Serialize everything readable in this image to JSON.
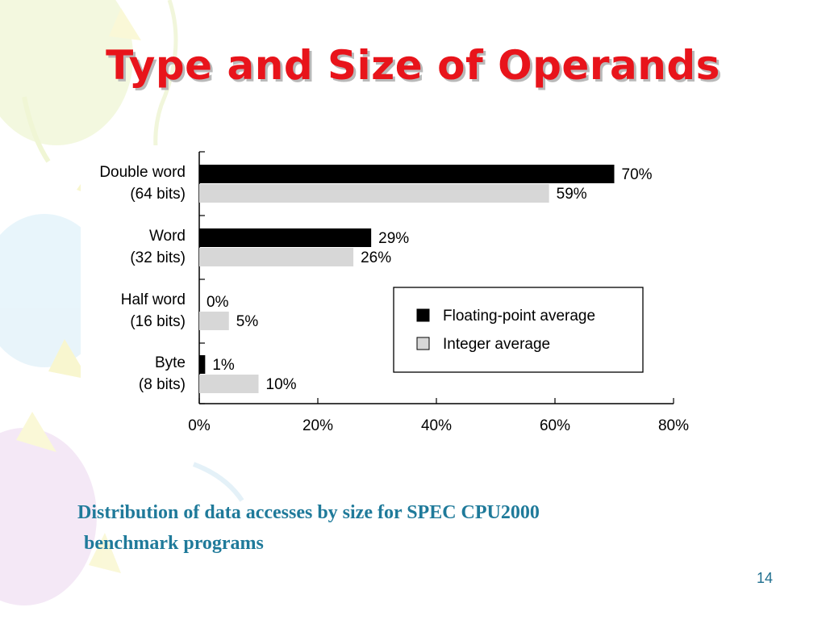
{
  "slide": {
    "title": "Type and Size of Operands",
    "caption_line1": "Distribution of data accesses by size for SPEC CPU2000",
    "caption_line2": "benchmark programs",
    "page_number": "14"
  },
  "colors": {
    "title": "#e8141b",
    "caption": "#1f7a9a",
    "floating_point": "#000000",
    "integer": "#d7d7d7"
  },
  "chart_data": {
    "type": "bar",
    "orientation": "horizontal",
    "categories": [
      {
        "line1": "Double word",
        "line2": "(64 bits)"
      },
      {
        "line1": "Word",
        "line2": "(32 bits)"
      },
      {
        "line1": "Half word",
        "line2": "(16 bits)"
      },
      {
        "line1": "Byte",
        "line2": "(8 bits)"
      }
    ],
    "series": [
      {
        "name": "Floating-point average",
        "color": "#000000",
        "values": [
          70,
          29,
          0,
          1
        ],
        "labels": [
          "70%",
          "29%",
          "0%",
          "1%"
        ]
      },
      {
        "name": "Integer average",
        "color": "#d7d7d7",
        "values": [
          59,
          26,
          5,
          10
        ],
        "labels": [
          "59%",
          "26%",
          "5%",
          "10%"
        ]
      }
    ],
    "xlim": [
      0,
      80
    ],
    "xticks": [
      0,
      20,
      40,
      60,
      80
    ],
    "xtick_labels": [
      "0%",
      "20%",
      "40%",
      "60%",
      "80%"
    ],
    "legend_position": "right-middle",
    "grid": false
  }
}
